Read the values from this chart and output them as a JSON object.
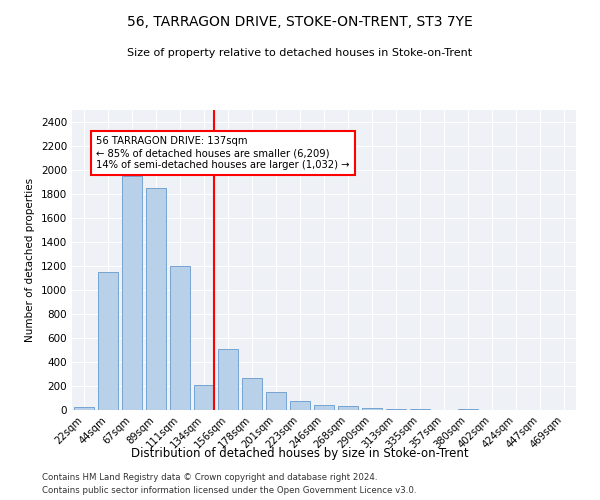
{
  "title1": "56, TARRAGON DRIVE, STOKE-ON-TRENT, ST3 7YE",
  "title2": "Size of property relative to detached houses in Stoke-on-Trent",
  "xlabel": "Distribution of detached houses by size in Stoke-on-Trent",
  "ylabel": "Number of detached properties",
  "categories": [
    "22sqm",
    "44sqm",
    "67sqm",
    "89sqm",
    "111sqm",
    "134sqm",
    "156sqm",
    "178sqm",
    "201sqm",
    "223sqm",
    "246sqm",
    "268sqm",
    "290sqm",
    "313sqm",
    "335sqm",
    "357sqm",
    "380sqm",
    "402sqm",
    "424sqm",
    "447sqm",
    "469sqm"
  ],
  "values": [
    25,
    1150,
    1950,
    1850,
    1200,
    205,
    510,
    265,
    150,
    75,
    38,
    30,
    15,
    5,
    5,
    2,
    5,
    2,
    2,
    2,
    2
  ],
  "bar_color": "#b8d0e8",
  "bar_edge_color": "#6699cc",
  "annotation_line1": "56 TARRAGON DRIVE: 137sqm",
  "annotation_line2": "← 85% of detached houses are smaller (6,209)",
  "annotation_line3": "14% of semi-detached houses are larger (1,032) →",
  "vline_index": 5,
  "ylim": [
    0,
    2500
  ],
  "yticks": [
    0,
    200,
    400,
    600,
    800,
    1000,
    1200,
    1400,
    1600,
    1800,
    2000,
    2200,
    2400
  ],
  "background_color": "#eef2f7",
  "grid_color": "#ffffff",
  "footnote1": "Contains HM Land Registry data © Crown copyright and database right 2024.",
  "footnote2": "Contains public sector information licensed under the Open Government Licence v3.0."
}
